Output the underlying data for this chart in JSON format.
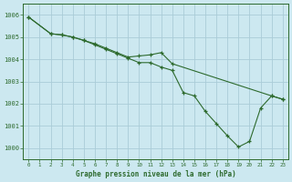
{
  "title": "Graphe pression niveau de la mer (hPa)",
  "bg_color": "#cce8f0",
  "grid_color": "#aaccd8",
  "line_color": "#2d6a2d",
  "x_ticks": [
    0,
    1,
    2,
    3,
    4,
    5,
    6,
    7,
    8,
    9,
    10,
    11,
    12,
    13,
    14,
    15,
    16,
    17,
    18,
    19,
    20,
    21,
    22,
    23
  ],
  "ylim": [
    999.5,
    1006.5
  ],
  "yticks": [
    1000,
    1001,
    1002,
    1003,
    1004,
    1005,
    1006
  ],
  "series1_x": [
    0,
    2,
    3,
    4,
    5,
    6,
    7,
    8,
    9,
    10,
    11,
    12,
    13,
    22,
    23
  ],
  "series1_y": [
    1005.9,
    1005.15,
    1005.1,
    1005.0,
    1004.85,
    1004.7,
    1004.5,
    1004.3,
    1004.1,
    1004.15,
    1004.2,
    1004.3,
    1003.8,
    1002.35,
    1002.2
  ],
  "series2_x": [
    0,
    2,
    3,
    4,
    5,
    6,
    7,
    8,
    9,
    10,
    11,
    12,
    13,
    14,
    15,
    16,
    17,
    18,
    19,
    20,
    21,
    22,
    23
  ],
  "series2_y": [
    1005.9,
    1005.15,
    1005.1,
    1005.0,
    1004.85,
    1004.65,
    1004.45,
    1004.25,
    1004.05,
    1003.85,
    1003.85,
    1003.65,
    1003.5,
    1002.5,
    1002.35,
    1001.65,
    1001.1,
    1000.55,
    1000.05,
    1000.3,
    1001.8,
    1002.35,
    1002.2
  ]
}
